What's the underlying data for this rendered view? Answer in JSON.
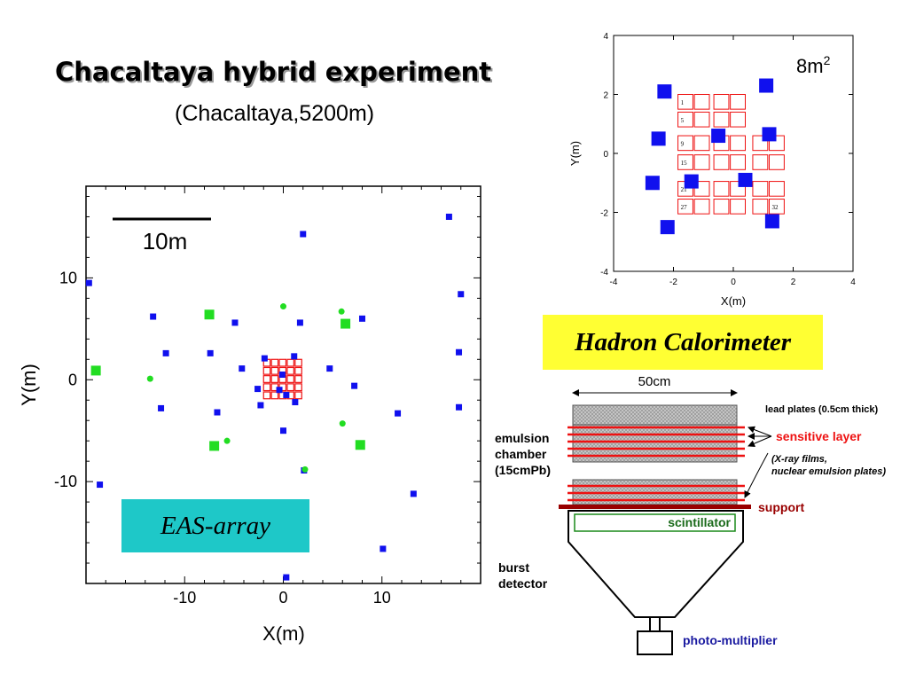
{
  "slide": {
    "title": "Chacaltaya hybrid experiment",
    "subtitle": "(Chacaltaya,5200m)",
    "eas_label": "EAS-array",
    "hadron_label": "Hadron Calorimeter"
  },
  "colors": {
    "blue": "#1010ee",
    "green": "#22dd22",
    "red": "#ee1111",
    "dark_red": "#990000",
    "cyan": "#1ec8c8",
    "yellow": "#ffff33"
  },
  "chart_data": [
    {
      "type": "scatter",
      "xlabel": "X(m)",
      "ylabel": "Y(m)",
      "xlim": [
        -20,
        20
      ],
      "ylim": [
        -20,
        19
      ],
      "xticks": [
        -10,
        0,
        10
      ],
      "yticks": [
        10,
        0,
        -10
      ],
      "scale_bar_label": "10m",
      "series": [
        {
          "marker": "small-blue-square",
          "points": [
            [
              -19.7,
              9.5
            ],
            [
              -18.6,
              -10.3
            ],
            [
              -13.2,
              6.2
            ],
            [
              -12.4,
              -2.8
            ],
            [
              -11.9,
              2.6
            ],
            [
              -7.4,
              2.6
            ],
            [
              -6.7,
              -3.2
            ],
            [
              -4.9,
              5.6
            ],
            [
              -4.2,
              1.1
            ],
            [
              -2.3,
              -2.5
            ],
            [
              -1.9,
              2.1
            ],
            [
              -2.6,
              -0.9
            ],
            [
              -0.4,
              -1.0
            ],
            [
              1.2,
              -2.2
            ],
            [
              -0.1,
              0.5
            ],
            [
              0.3,
              -1.5
            ],
            [
              1.1,
              2.3
            ],
            [
              1.7,
              5.6
            ],
            [
              2.0,
              14.3
            ],
            [
              4.7,
              1.1
            ],
            [
              7.2,
              -0.6
            ],
            [
              8.0,
              6.0
            ],
            [
              11.6,
              -3.3
            ],
            [
              13.2,
              -11.2
            ],
            [
              2.1,
              -8.9
            ],
            [
              10.1,
              -16.6
            ],
            [
              0.3,
              -19.4
            ],
            [
              16.8,
              16.0
            ],
            [
              17.8,
              2.7
            ],
            [
              17.8,
              -2.7
            ],
            [
              18.0,
              8.4
            ],
            [
              0.0,
              -5.0
            ]
          ]
        },
        {
          "marker": "small-green-dot",
          "points": [
            [
              -13.5,
              0.1
            ],
            [
              0.0,
              7.2
            ],
            [
              5.9,
              6.7
            ],
            [
              6.0,
              -4.3
            ],
            [
              -5.7,
              -6.0
            ],
            [
              2.2,
              -8.8
            ]
          ]
        },
        {
          "marker": "large-green-square",
          "points": [
            [
              -19.0,
              0.9
            ],
            [
              -7.5,
              6.4
            ],
            [
              6.3,
              5.5
            ],
            [
              -7.0,
              -6.5
            ],
            [
              7.8,
              -6.4
            ]
          ]
        }
      ]
    },
    {
      "type": "scatter",
      "xlabel": "X(m)",
      "ylabel": "Y(m)",
      "xlim": [
        -4,
        4
      ],
      "ylim": [
        -4,
        4
      ],
      "xticks": [
        -4,
        -2,
        0,
        2,
        4
      ],
      "yticks": [
        4,
        2,
        0,
        -2,
        -4
      ],
      "area_label": "8m",
      "area_label_sup": "2",
      "blue_squares": [
        [
          -2.3,
          2.1
        ],
        [
          -2.5,
          0.5
        ],
        [
          -2.7,
          -1.0
        ],
        [
          -2.2,
          -2.5
        ],
        [
          -1.4,
          -0.95
        ],
        [
          -0.5,
          0.6
        ],
        [
          0.4,
          -0.9
        ],
        [
          1.1,
          2.3
        ],
        [
          1.2,
          0.65
        ],
        [
          1.3,
          -2.3
        ]
      ],
      "red_square_labels": [
        "1",
        "5",
        "9",
        "15",
        "21",
        "27",
        "32"
      ]
    }
  ],
  "detector": {
    "width_label": "50cm",
    "lead_plates_label": "lead plates  (0.5cm  thick)",
    "sensitive_layer_label": "sensitive layer",
    "films_line1": "(X-ray  films,",
    "films_line2": "nuclear  emulsion  plates)",
    "support_label": "support",
    "scintillator_label": "scintillator",
    "emulsion_line1": "emulsion",
    "emulsion_line2": "chamber",
    "emulsion_line3": "(15cmPb)",
    "burst_line1": "burst",
    "burst_line2": "detector",
    "photomultiplier_label": "photo-multiplier"
  }
}
